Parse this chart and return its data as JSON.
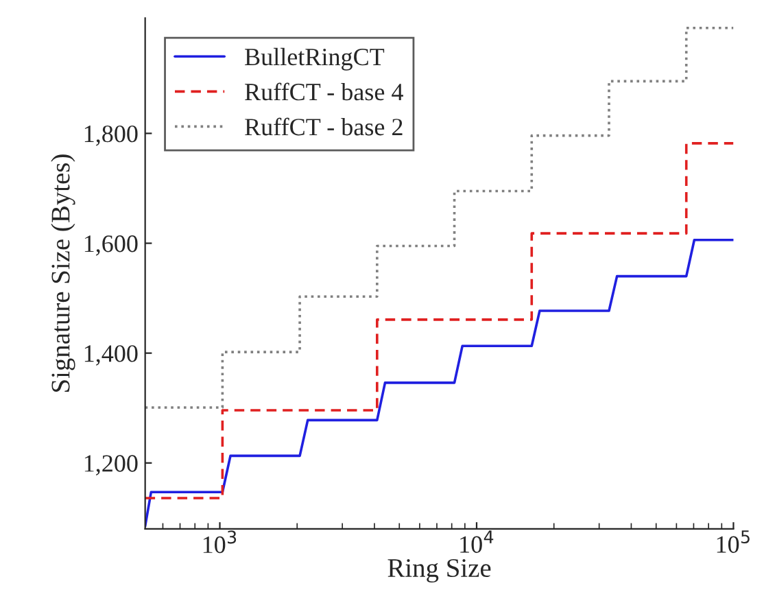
{
  "chart_data": {
    "type": "line",
    "xlabel": "Ring Size",
    "ylabel": "Signature Size (Bytes)",
    "log": "x",
    "xlim": [
      512,
      100000
    ],
    "xticks": [
      {
        "value": 1000,
        "label": "10$^{3}$"
      },
      {
        "value": 10000,
        "label": "10$^{4}$"
      },
      {
        "value": 100000,
        "label": "10$^{5}$"
      }
    ],
    "ylim": [
      1080,
      2010
    ],
    "yticks": [
      {
        "value": 1200,
        "label": "1,200"
      },
      {
        "value": 1400,
        "label": "1,400"
      },
      {
        "value": 1600,
        "label": "1,600"
      },
      {
        "value": 1800,
        "label": "1,800"
      }
    ],
    "legend": "top left",
    "grid": false,
    "series": [
      {
        "name": "BulletRingCT",
        "color": "#2020e0",
        "line_style": "solid",
        "x": [
          512,
          540,
          1024,
          1100,
          2048,
          2200,
          4096,
          4400,
          8192,
          8800,
          16384,
          17600,
          32768,
          35200,
          65536,
          70400,
          100000
        ],
        "values": [
          1085,
          1147,
          1147,
          1213,
          1213,
          1278,
          1278,
          1346,
          1346,
          1413,
          1413,
          1477,
          1477,
          1540,
          1540,
          1606,
          1606
        ]
      },
      {
        "name": "RuffCT - base 4",
        "color": "#e02020",
        "line_style": "dashed",
        "x": [
          512,
          1024,
          1024,
          4096,
          4096,
          16384,
          16384,
          65536,
          65536,
          100000
        ],
        "values": [
          1136,
          1136,
          1296,
          1296,
          1461,
          1461,
          1618,
          1618,
          1782,
          1782
        ]
      },
      {
        "name": "RuffCT - base 2",
        "color": "#808080",
        "line_style": "dotted",
        "x": [
          512,
          1024,
          1024,
          2048,
          2048,
          4096,
          4096,
          8192,
          8192,
          16384,
          16384,
          32768,
          32768,
          65536,
          65536,
          100000
        ],
        "values": [
          1301,
          1301,
          1402,
          1402,
          1503,
          1503,
          1595,
          1595,
          1695,
          1695,
          1796,
          1796,
          1895,
          1895,
          1992,
          1992
        ]
      }
    ]
  }
}
